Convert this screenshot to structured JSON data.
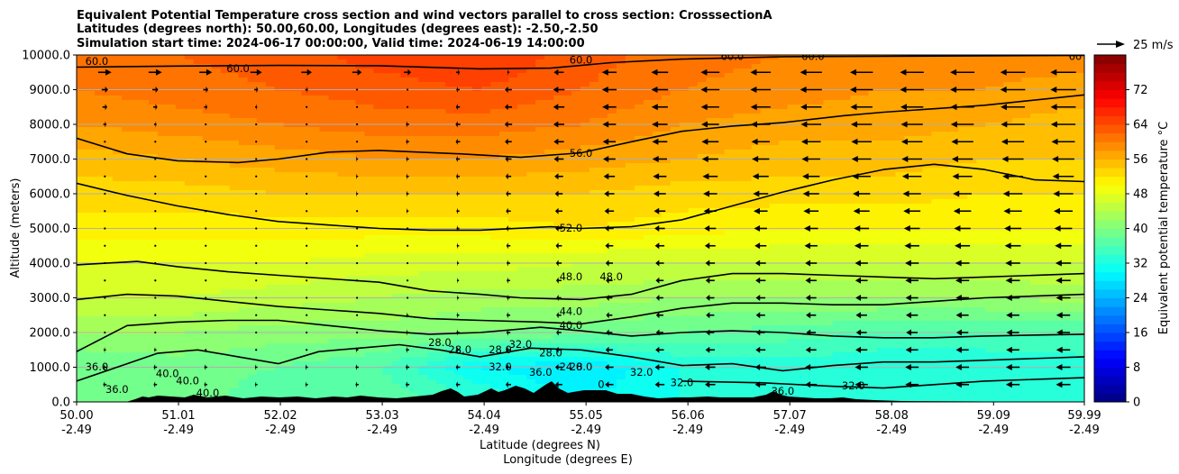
{
  "chart_data": {
    "type": "contourf",
    "title_lines": [
      "Equivalent Potential Temperature cross section and wind vectors parallel to cross section: CrosssectionA",
      "Latitudes (degrees north): 50.00,60.00, Longitudes (degrees east): -2.50,-2.50",
      "Simulation start time: 2024-06-17 00:00:00, Valid time: 2024-06-19 14:00:00"
    ],
    "xlabel_lines": [
      "Latitude (degrees N)",
      "Longitude (degrees E)"
    ],
    "ylabel": "Altitude (meters)",
    "xlim": [
      50.0,
      59.99
    ],
    "ylim": [
      0,
      10000
    ],
    "x_ticks": [
      {
        "lat": 50.0,
        "label": "50.00",
        "lon_label": "-2.49"
      },
      {
        "lat": 51.01,
        "label": "51.01",
        "lon_label": "-2.49"
      },
      {
        "lat": 52.02,
        "label": "52.02",
        "lon_label": "-2.49"
      },
      {
        "lat": 53.03,
        "label": "53.03",
        "lon_label": "-2.49"
      },
      {
        "lat": 54.04,
        "label": "54.04",
        "lon_label": "-2.49"
      },
      {
        "lat": 55.05,
        "label": "55.05",
        "lon_label": "-2.49"
      },
      {
        "lat": 56.06,
        "label": "56.06",
        "lon_label": "-2.49"
      },
      {
        "lat": 57.07,
        "label": "57.07",
        "lon_label": "-2.49"
      },
      {
        "lat": 58.08,
        "label": "58.08",
        "lon_label": "-2.49"
      },
      {
        "lat": 59.09,
        "label": "59.09",
        "lon_label": "-2.49"
      },
      {
        "lat": 59.99,
        "label": "59.99",
        "lon_label": "-2.49"
      }
    ],
    "y_ticks": [
      {
        "value": 0,
        "label": "0.0"
      },
      {
        "value": 1000,
        "label": "1000.0"
      },
      {
        "value": 2000,
        "label": "2000.0"
      },
      {
        "value": 3000,
        "label": "3000.0"
      },
      {
        "value": 4000,
        "label": "4000.0"
      },
      {
        "value": 5000,
        "label": "5000.0"
      },
      {
        "value": 6000,
        "label": "6000.0"
      },
      {
        "value": 7000,
        "label": "7000.0"
      },
      {
        "value": 8000,
        "label": "8000.0"
      },
      {
        "value": 9000,
        "label": "9000.0"
      },
      {
        "value": 10000,
        "label": "10000.0"
      }
    ],
    "colorbar": {
      "label": "Equivalent potential temperature $^\\circ$C",
      "label_display": "Equivalent potential temperature °C",
      "vmin": 0,
      "vmax": 80,
      "ticks": [
        {
          "value": 0,
          "label": "0"
        },
        {
          "value": 8,
          "label": "8"
        },
        {
          "value": 16,
          "label": "16"
        },
        {
          "value": 24,
          "label": "24"
        },
        {
          "value": 32,
          "label": "32"
        },
        {
          "value": 40,
          "label": "40"
        },
        {
          "value": 48,
          "label": "48"
        },
        {
          "value": 56,
          "label": "56"
        },
        {
          "value": 64,
          "label": "64"
        },
        {
          "value": 72,
          "label": "72"
        }
      ],
      "colormap": "jet"
    },
    "quiver_key": {
      "label": "25 m/s",
      "speed_ms": 25
    },
    "theta_e_profiles": {
      "description": "Approximate equivalent potential temperature (°C) at each altitude level, estimated from colours and contours",
      "latitudes": [
        50.0,
        51.0,
        52.0,
        53.0,
        54.0,
        55.0,
        56.0,
        57.0,
        58.0,
        59.0,
        60.0
      ],
      "levels_m": [
        0,
        1000,
        2000,
        3000,
        4000,
        5000,
        6000,
        7000,
        8000,
        9000,
        10000
      ],
      "values": [
        [
          38,
          40,
          36,
          38,
          34,
          30,
          32,
          34,
          32,
          32,
          32
        ],
        [
          38,
          39,
          38,
          36,
          30,
          28,
          32,
          33,
          32,
          32,
          33
        ],
        [
          42,
          42,
          41,
          41,
          40,
          39,
          38,
          37,
          36,
          36,
          36
        ],
        [
          46,
          46,
          45,
          44,
          43,
          43,
          42,
          42,
          42,
          42,
          43
        ],
        [
          48,
          48,
          48,
          47,
          47,
          46,
          46,
          46,
          46,
          46,
          46
        ],
        [
          51,
          51,
          51,
          51,
          51,
          52,
          51,
          50,
          50,
          50,
          50
        ],
        [
          53,
          53,
          54,
          54,
          54,
          54,
          53,
          53,
          53,
          52,
          52
        ],
        [
          55,
          56,
          57,
          58,
          58,
          57,
          56,
          55,
          55,
          54,
          54
        ],
        [
          58,
          59,
          60,
          61,
          61,
          60,
          58,
          57,
          57,
          56,
          55
        ],
        [
          60,
          61,
          62,
          63,
          64,
          62,
          60,
          59,
          58,
          58,
          57
        ],
        [
          61,
          62,
          63,
          65,
          66,
          63,
          61,
          60,
          59,
          59,
          59
        ]
      ]
    },
    "contour_lines": [
      {
        "level": 60.0,
        "label": "60.0",
        "points": [
          [
            50.0,
            9650
          ],
          [
            51.0,
            9680
          ],
          [
            52.0,
            9700
          ],
          [
            53.0,
            9690
          ],
          [
            54.0,
            9600
          ],
          [
            54.7,
            9620
          ],
          [
            55.3,
            9780
          ],
          [
            56.0,
            9880
          ],
          [
            57.0,
            9950
          ],
          [
            58.0,
            9960
          ],
          [
            60.0,
            9990
          ]
        ]
      },
      {
        "level": 56.0,
        "label": "56.0",
        "points": [
          [
            50.0,
            7600
          ],
          [
            50.5,
            7150
          ],
          [
            51.0,
            6950
          ],
          [
            51.6,
            6900
          ],
          [
            52.0,
            7000
          ],
          [
            52.5,
            7200
          ],
          [
            53.0,
            7250
          ],
          [
            53.8,
            7150
          ],
          [
            54.4,
            7050
          ],
          [
            55.0,
            7180
          ],
          [
            55.5,
            7500
          ],
          [
            56.0,
            7800
          ],
          [
            56.5,
            7950
          ],
          [
            57.0,
            8050
          ],
          [
            57.6,
            8250
          ],
          [
            58.0,
            8350
          ],
          [
            58.5,
            8450
          ],
          [
            59.0,
            8550
          ],
          [
            59.99,
            8850
          ]
        ]
      },
      {
        "level": 52.0,
        "label": "52.0",
        "points": [
          [
            50.0,
            6300
          ],
          [
            50.5,
            5950
          ],
          [
            51.0,
            5650
          ],
          [
            51.5,
            5400
          ],
          [
            52.0,
            5200
          ],
          [
            52.5,
            5100
          ],
          [
            53.0,
            5000
          ],
          [
            53.5,
            4950
          ],
          [
            54.0,
            4950
          ],
          [
            54.7,
            5050
          ],
          [
            55.0,
            5000
          ],
          [
            55.5,
            5050
          ],
          [
            56.0,
            5250
          ],
          [
            56.5,
            5650
          ],
          [
            57.0,
            6050
          ],
          [
            57.5,
            6400
          ],
          [
            58.0,
            6700
          ],
          [
            58.5,
            6850
          ],
          [
            59.0,
            6700
          ],
          [
            59.5,
            6400
          ],
          [
            59.99,
            6350
          ]
        ]
      },
      {
        "level": 48.0,
        "label": "48.0",
        "points": [
          [
            50.0,
            3950
          ],
          [
            50.6,
            4050
          ],
          [
            51.0,
            3900
          ],
          [
            51.5,
            3750
          ],
          [
            52.0,
            3650
          ],
          [
            52.5,
            3550
          ],
          [
            53.0,
            3450
          ],
          [
            53.5,
            3200
          ],
          [
            54.0,
            3100
          ],
          [
            54.4,
            3000
          ],
          [
            55.0,
            2950
          ],
          [
            55.5,
            3100
          ],
          [
            56.0,
            3500
          ],
          [
            56.5,
            3700
          ],
          [
            57.0,
            3700
          ],
          [
            57.5,
            3650
          ],
          [
            58.0,
            3600
          ],
          [
            58.5,
            3550
          ],
          [
            59.0,
            3600
          ],
          [
            59.99,
            3700
          ]
        ]
      },
      {
        "level": 44.0,
        "label": "44.0",
        "points": [
          [
            50.0,
            2950
          ],
          [
            50.5,
            3100
          ],
          [
            51.0,
            3050
          ],
          [
            51.5,
            2900
          ],
          [
            52.0,
            2750
          ],
          [
            52.5,
            2650
          ],
          [
            53.0,
            2550
          ],
          [
            53.5,
            2400
          ],
          [
            54.0,
            2350
          ],
          [
            54.6,
            2300
          ],
          [
            55.0,
            2250
          ],
          [
            55.5,
            2450
          ],
          [
            56.0,
            2700
          ],
          [
            56.5,
            2850
          ],
          [
            57.0,
            2850
          ],
          [
            57.5,
            2800
          ],
          [
            58.0,
            2800
          ],
          [
            58.5,
            2900
          ],
          [
            59.0,
            3000
          ],
          [
            59.99,
            3100
          ]
        ]
      },
      {
        "level": 40.0,
        "label": "40.0",
        "points": [
          [
            50.0,
            1450
          ],
          [
            50.5,
            2200
          ],
          [
            51.0,
            2300
          ],
          [
            51.5,
            2350
          ],
          [
            52.0,
            2350
          ],
          [
            52.5,
            2200
          ],
          [
            53.0,
            2050
          ],
          [
            53.5,
            1950
          ],
          [
            54.0,
            2000
          ],
          [
            54.6,
            2150
          ],
          [
            55.0,
            2050
          ],
          [
            55.5,
            1900
          ],
          [
            56.0,
            2000
          ],
          [
            56.5,
            2050
          ],
          [
            57.0,
            2000
          ],
          [
            57.5,
            1900
          ],
          [
            58.0,
            1850
          ],
          [
            58.5,
            1850
          ],
          [
            59.0,
            1900
          ],
          [
            59.99,
            1950
          ]
        ]
      },
      {
        "level": 36.0,
        "label": "36.0",
        "points": [
          [
            50.0,
            600
          ],
          [
            50.4,
            1000
          ],
          [
            50.8,
            1400
          ],
          [
            51.2,
            1500
          ],
          [
            51.6,
            1300
          ],
          [
            52.0,
            1100
          ],
          [
            52.4,
            1450
          ],
          [
            52.8,
            1550
          ],
          [
            53.2,
            1650
          ],
          [
            53.6,
            1500
          ],
          [
            54.0,
            1300
          ],
          [
            54.5,
            1550
          ],
          [
            55.0,
            1500
          ],
          [
            55.5,
            1300
          ],
          [
            56.0,
            1050
          ],
          [
            56.5,
            1100
          ],
          [
            57.0,
            900
          ],
          [
            57.5,
            1050
          ],
          [
            58.0,
            1150
          ],
          [
            58.5,
            1150
          ],
          [
            59.0,
            1200
          ],
          [
            59.99,
            1300
          ]
        ]
      },
      {
        "level": 32.0,
        "label": "32.0",
        "points": [
          [
            56.0,
            600
          ],
          [
            56.8,
            550
          ],
          [
            57.5,
            450
          ],
          [
            58.0,
            400
          ],
          [
            58.5,
            500
          ],
          [
            59.0,
            600
          ],
          [
            59.99,
            700
          ]
        ]
      }
    ],
    "contour_labels": [
      {
        "text": "60.0",
        "lat": 50.2,
        "alt": 9800
      },
      {
        "text": "60.0",
        "lat": 51.6,
        "alt": 9600
      },
      {
        "text": "60.0",
        "lat": 55.0,
        "alt": 9850
      },
      {
        "text": "60.0",
        "lat": 56.5,
        "alt": 9950
      },
      {
        "text": "60.0",
        "lat": 57.3,
        "alt": 9950
      },
      {
        "text": "60",
        "lat": 59.9,
        "alt": 9950
      },
      {
        "text": "56.0",
        "lat": 55.0,
        "alt": 7150
      },
      {
        "text": "52.0",
        "lat": 54.9,
        "alt": 5000
      },
      {
        "text": "48.0",
        "lat": 54.9,
        "alt": 3600
      },
      {
        "text": "48.0",
        "lat": 55.3,
        "alt": 3600
      },
      {
        "text": "44.0",
        "lat": 54.9,
        "alt": 2600
      },
      {
        "text": "40.0",
        "lat": 54.9,
        "alt": 2200
      },
      {
        "text": "36.0",
        "lat": 50.2,
        "alt": 1000
      },
      {
        "text": "36.0",
        "lat": 50.4,
        "alt": 350
      },
      {
        "text": "40.0",
        "lat": 50.9,
        "alt": 800
      },
      {
        "text": "40.0",
        "lat": 51.1,
        "alt": 600
      },
      {
        "text": "40.0",
        "lat": 51.3,
        "alt": 250
      },
      {
        "text": "28.0",
        "lat": 53.6,
        "alt": 1700
      },
      {
        "text": "28.0",
        "lat": 53.8,
        "alt": 1500
      },
      {
        "text": "28.0",
        "lat": 54.2,
        "alt": 1500
      },
      {
        "text": "32.0",
        "lat": 54.4,
        "alt": 1650
      },
      {
        "text": "32.0",
        "lat": 54.2,
        "alt": 1000
      },
      {
        "text": "28.0",
        "lat": 54.7,
        "alt": 1400
      },
      {
        "text": "28.0",
        "lat": 55.0,
        "alt": 1000
      },
      {
        "text": "24.0",
        "lat": 54.9,
        "alt": 1000
      },
      {
        "text": "36.0",
        "lat": 54.6,
        "alt": 850
      },
      {
        "text": "32.0",
        "lat": 55.6,
        "alt": 850
      },
      {
        "text": "32.0",
        "lat": 56.0,
        "alt": 550
      },
      {
        "text": "36.0",
        "lat": 57.0,
        "alt": 300
      },
      {
        "text": "32.0",
        "lat": 57.7,
        "alt": 450
      },
      {
        "text": "0",
        "lat": 55.2,
        "alt": 500
      }
    ],
    "wind_vectors": {
      "description": "Wind component parallel to cross section (m/s); positive = toward increasing latitude (arrow points right)",
      "latitudes": [
        50.0,
        51.0,
        52.0,
        53.0,
        54.0,
        55.0,
        56.0,
        57.0,
        58.0,
        59.0,
        59.8
      ],
      "levels_m": [
        1000,
        2000,
        3000,
        4000,
        5000,
        6000,
        7000,
        8000,
        9000,
        9500
      ],
      "u_ms": [
        [
          -3,
          -3,
          -2,
          -3,
          -4,
          -7,
          -9,
          -10,
          -12,
          -12,
          -13
        ],
        [
          -1,
          -1,
          0,
          -2,
          -3,
          -5,
          -7,
          -8,
          -10,
          -11,
          -12
        ],
        [
          -1,
          0,
          0,
          -1,
          -2,
          -5,
          -7,
          -9,
          -11,
          -12,
          -13
        ],
        [
          0,
          0,
          0,
          -1,
          -2,
          -6,
          -8,
          -10,
          -12,
          -13,
          -14
        ],
        [
          0,
          0,
          0,
          -1,
          -3,
          -7,
          -10,
          -12,
          -14,
          -15,
          -16
        ],
        [
          0,
          0,
          -1,
          -2,
          -3,
          -8,
          -12,
          -14,
          -16,
          -17,
          -18
        ],
        [
          0,
          0,
          -1,
          -2,
          -4,
          -10,
          -14,
          -16,
          -18,
          -19,
          -20
        ],
        [
          3,
          2,
          0,
          -2,
          -5,
          -11,
          -15,
          -18,
          -19,
          -21,
          -22
        ],
        [
          6,
          5,
          3,
          1,
          -4,
          -12,
          -16,
          -19,
          -21,
          -22,
          -23
        ],
        [
          12,
          12,
          10,
          8,
          2,
          -12,
          -16,
          -19,
          -21,
          -22,
          -23
        ]
      ]
    }
  }
}
